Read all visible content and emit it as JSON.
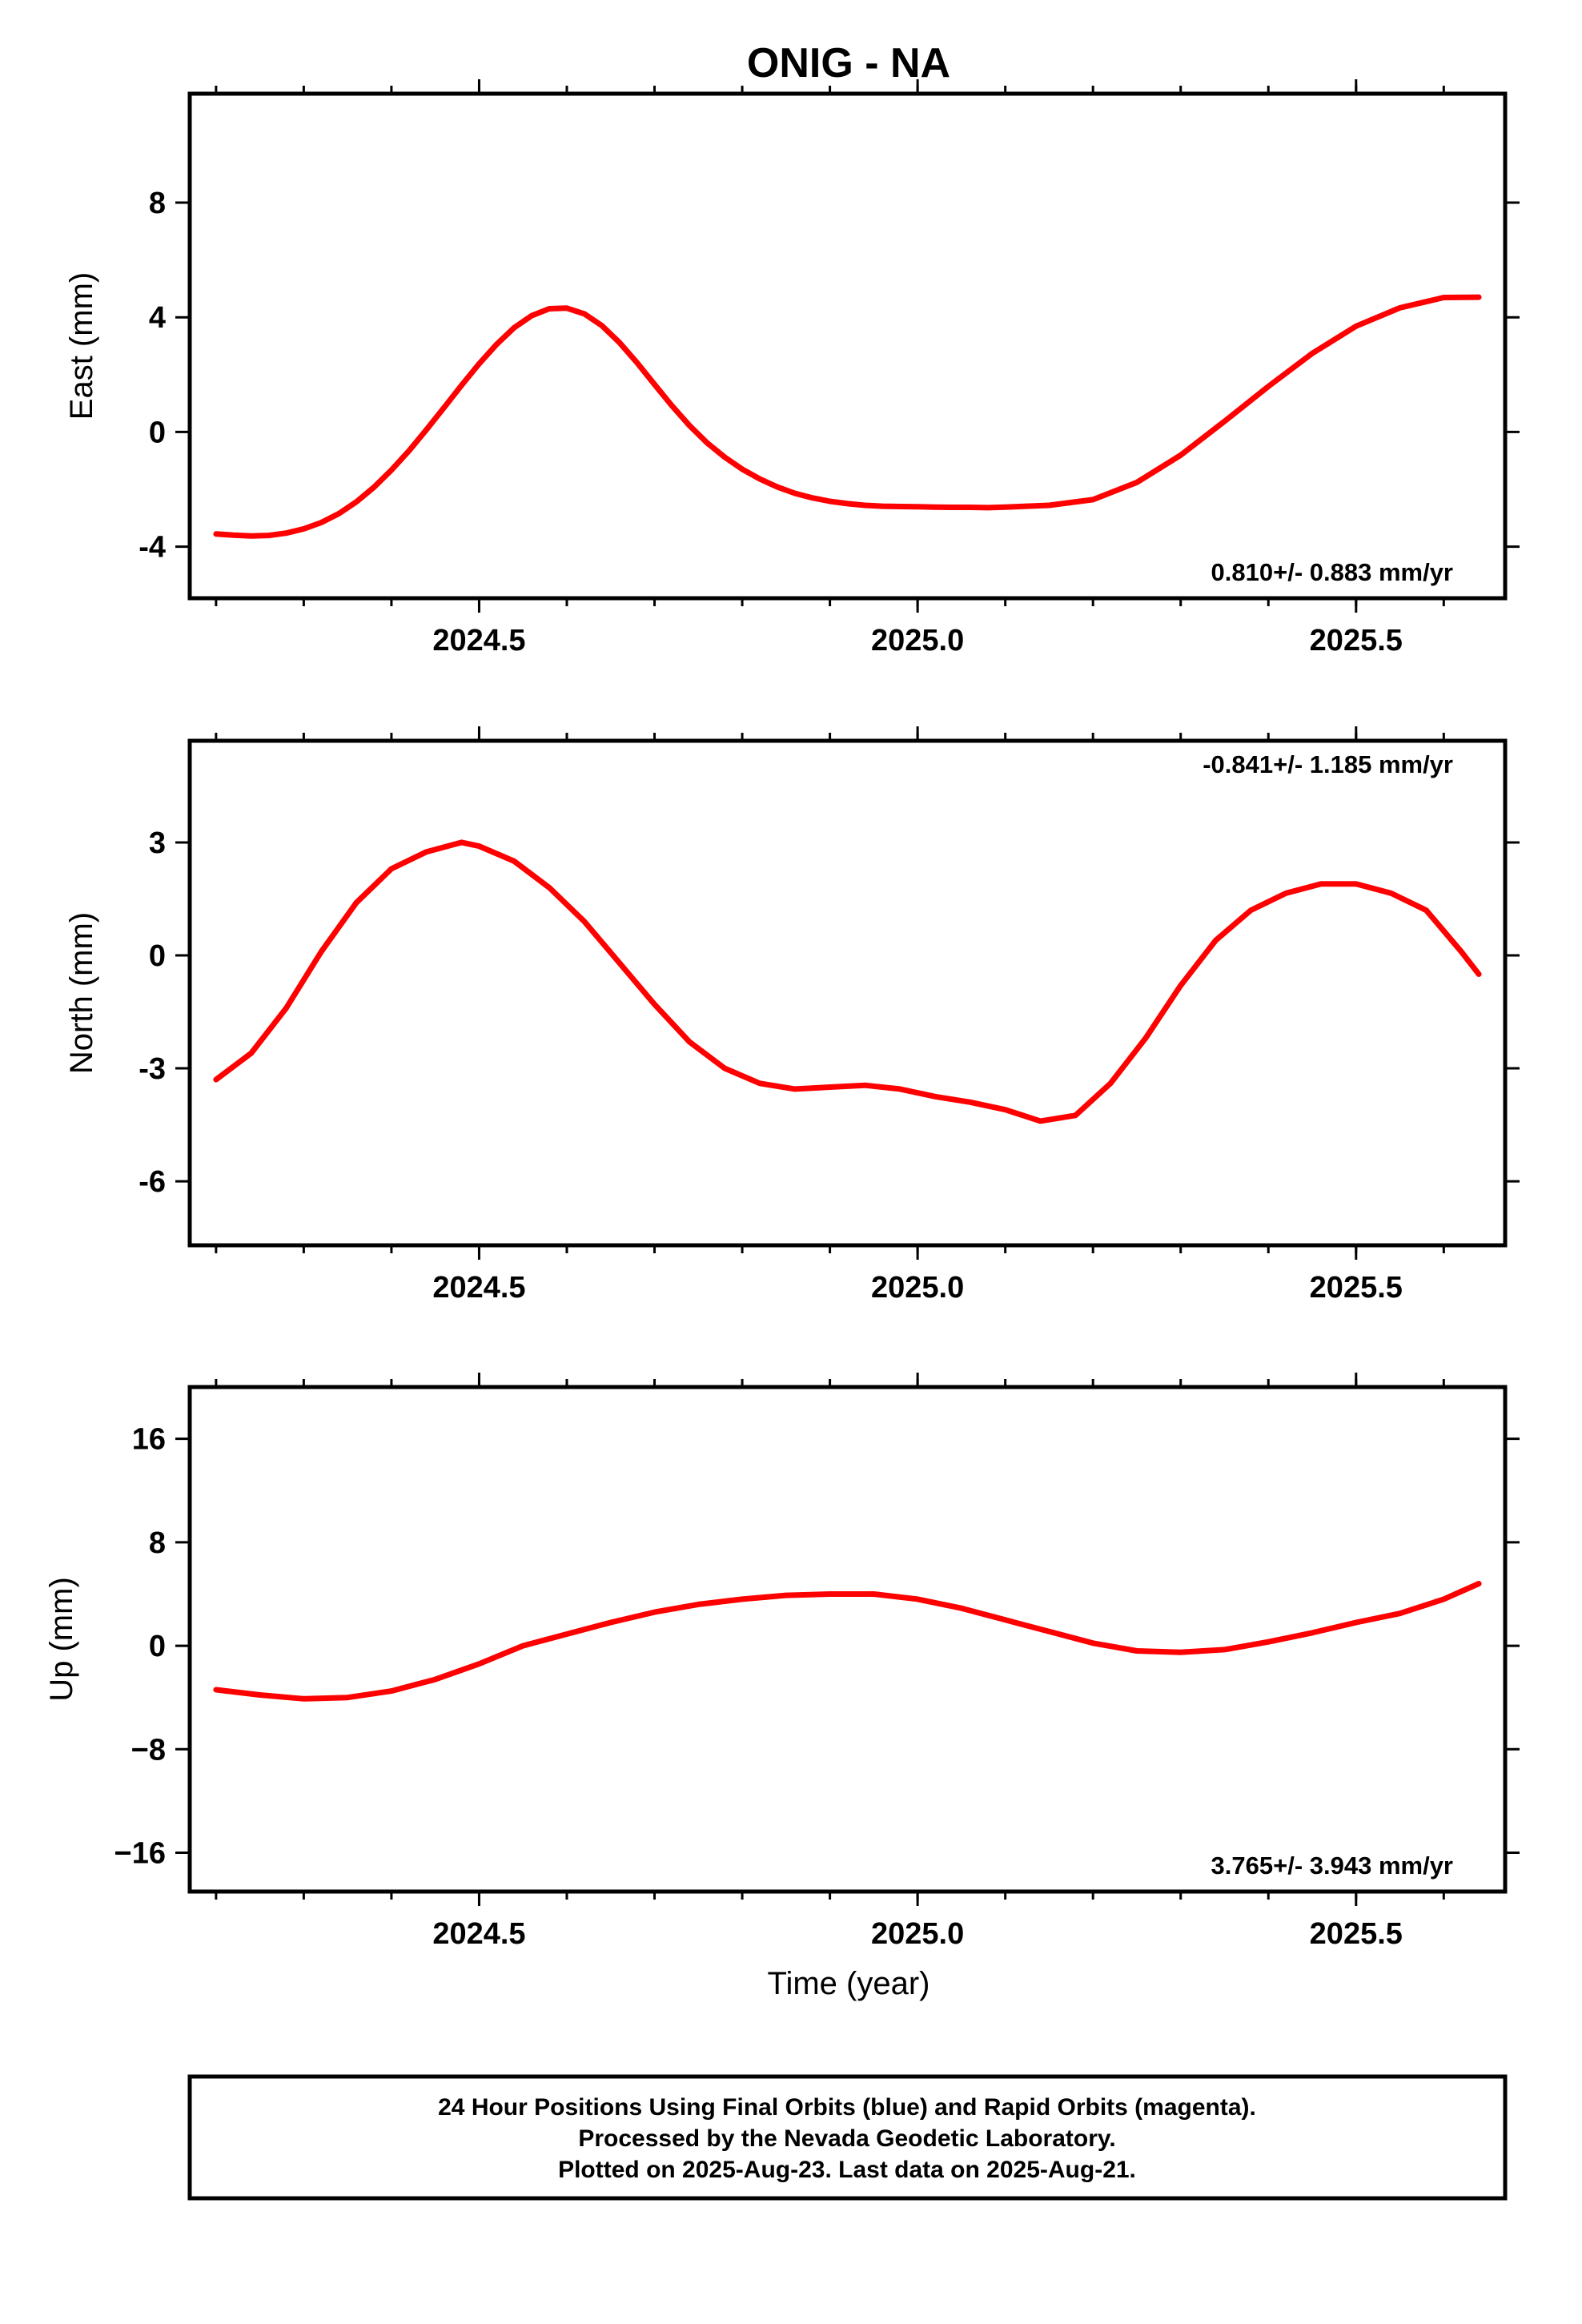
{
  "title": "ONIG - NA",
  "x_axis_label": "Time (year)",
  "footer": {
    "line1": "24 Hour Positions Using Final Orbits (blue) and Rapid Orbits (magenta).",
    "line2": "Processed by the Nevada Geodetic Laboratory.",
    "line3": "Plotted on 2025-Aug-23. Last data on 2025-Aug-21."
  },
  "colors": {
    "final": "#0000ff",
    "rapid": "#ff00ff",
    "fit": "#ff0000"
  },
  "chart_data": [
    {
      "type": "scatter",
      "ylabel": "East (mm)",
      "rate_text": "0.810+/- 0.883 mm/yr",
      "rate_position": "bottom-right",
      "xlim": [
        2024.17,
        2025.67
      ],
      "ylim": [
        -5.8,
        11.8
      ],
      "xticks": [
        2024.5,
        2025.0,
        2025.5
      ],
      "xtick_labels": [
        "2024.5",
        "2025.0",
        "2025.5"
      ],
      "yticks": [
        -4,
        0,
        4,
        8
      ],
      "ytick_labels": [
        "-4",
        "0",
        "4",
        "8"
      ],
      "series": [
        {
          "x": [
            2024.2,
            2024.22,
            2024.24,
            2024.26,
            2024.28,
            2024.3,
            2024.32,
            2024.34,
            2024.36,
            2024.38,
            2024.4,
            2024.42,
            2024.44,
            2024.46,
            2024.48,
            2024.5,
            2024.52,
            2024.54,
            2024.56,
            2024.58,
            2024.6,
            2024.62,
            2024.64,
            2024.66,
            2024.68,
            2024.7,
            2024.72,
            2024.74,
            2024.76,
            2024.78,
            2024.8,
            2024.82,
            2024.84,
            2024.86,
            2024.88,
            2024.9,
            2024.92,
            2024.94,
            2024.96,
            2024.98,
            2025.0,
            2025.02,
            2025.04,
            2025.06,
            2025.08,
            2025.1,
            2025.15,
            2025.2,
            2025.25,
            2025.3,
            2025.35,
            2025.4,
            2025.45,
            2025.5,
            2025.55,
            2025.6,
            2025.64
          ],
          "y": [
            -3.56,
            -3.6,
            -3.63,
            -3.61,
            -3.53,
            -3.38,
            -3.16,
            -2.85,
            -2.44,
            -1.93,
            -1.33,
            -0.66,
            0.08,
            0.85,
            1.63,
            2.38,
            3.06,
            3.64,
            4.06,
            4.3,
            4.32,
            4.12,
            3.71,
            3.12,
            2.42,
            1.66,
            0.91,
            0.22,
            -0.38,
            -0.88,
            -1.3,
            -1.64,
            -1.92,
            -2.14,
            -2.3,
            -2.42,
            -2.5,
            -2.56,
            -2.59,
            -2.6,
            -2.61,
            -2.62,
            -2.63,
            -2.63,
            -2.64,
            -2.62,
            -2.56,
            -2.36,
            -1.76,
            -0.81,
            0.37,
            1.59,
            2.74,
            3.69,
            4.33,
            4.69,
            4.7
          ],
          "name": ""
        }
      ]
    },
    {
      "type": "scatter",
      "ylabel": "North (mm)",
      "rate_text": "-0.841+/- 1.185 mm/yr",
      "rate_position": "top-right",
      "xlim": [
        2024.17,
        2025.67
      ],
      "ylim": [
        -7.7,
        5.7
      ],
      "xticks": [
        2024.5,
        2025.0,
        2025.5
      ],
      "xtick_labels": [
        "2024.5",
        "2025.0",
        "2025.5"
      ],
      "yticks": [
        -6,
        -3,
        0,
        3
      ],
      "ytick_labels": [
        "-6",
        "-3",
        "0",
        "3"
      ],
      "series": [
        {
          "x": [
            2024.2,
            2024.24,
            2024.28,
            2024.32,
            2024.36,
            2024.4,
            2024.44,
            2024.48,
            2024.5,
            2024.54,
            2024.58,
            2024.62,
            2024.66,
            2024.7,
            2024.74,
            2024.78,
            2024.82,
            2024.86,
            2024.9,
            2024.94,
            2024.98,
            2025.02,
            2025.06,
            2025.1,
            2025.14,
            2025.18,
            2025.22,
            2025.26,
            2025.3,
            2025.34,
            2025.38,
            2025.42,
            2025.46,
            2025.5,
            2025.54,
            2025.58,
            2025.62,
            2025.64
          ],
          "y": [
            -3.3,
            -2.6,
            -1.4,
            0.1,
            1.4,
            2.3,
            2.75,
            3.0,
            2.9,
            2.5,
            1.8,
            0.9,
            -0.2,
            -1.3,
            -2.3,
            -3.0,
            -3.4,
            -3.55,
            -3.5,
            -3.45,
            -3.55,
            -3.75,
            -3.9,
            -4.1,
            -4.4,
            -4.25,
            -3.4,
            -2.2,
            -0.8,
            0.4,
            1.2,
            1.65,
            1.9,
            1.9,
            1.65,
            1.2,
            0.1,
            -0.5
          ],
          "name": ""
        }
      ]
    },
    {
      "type": "scatter",
      "ylabel": "Up (mm)",
      "rate_text": "3.765+/- 3.943 mm/yr",
      "rate_position": "bottom-right",
      "xlim": [
        2024.17,
        2025.67
      ],
      "ylim": [
        -19,
        20
      ],
      "xticks": [
        2024.5,
        2025.0,
        2025.5
      ],
      "xtick_labels": [
        "2024.5",
        "2025.0",
        "2025.5"
      ],
      "yticks": [
        -16,
        -8,
        0,
        8,
        16
      ],
      "ytick_labels": [
        "−16",
        "−8",
        "0",
        "8",
        "16"
      ],
      "series": [
        {
          "x": [
            2024.2,
            2024.25,
            2024.3,
            2024.35,
            2024.4,
            2024.45,
            2024.5,
            2024.55,
            2024.6,
            2024.65,
            2024.7,
            2024.75,
            2024.8,
            2024.85,
            2024.9,
            2024.95,
            2025.0,
            2025.05,
            2025.1,
            2025.15,
            2025.2,
            2025.25,
            2025.3,
            2025.35,
            2025.4,
            2025.45,
            2025.5,
            2025.55,
            2025.6,
            2025.64
          ],
          "y": [
            -3.4,
            -3.8,
            -4.1,
            -4.0,
            -3.5,
            -2.6,
            -1.4,
            0.0,
            0.9,
            1.8,
            2.6,
            3.2,
            3.6,
            3.9,
            4.0,
            4.0,
            3.6,
            2.9,
            2.0,
            1.1,
            0.2,
            -0.4,
            -0.5,
            -0.3,
            0.3,
            1.0,
            1.8,
            2.5,
            3.6,
            4.8
          ],
          "name": ""
        }
      ]
    }
  ]
}
